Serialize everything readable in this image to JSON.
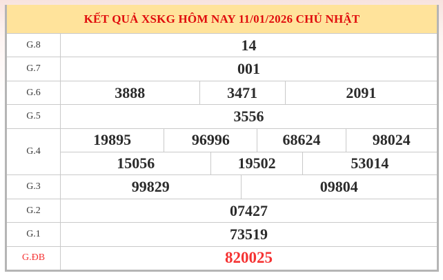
{
  "header": {
    "title": "KẾT QUẢ XSKG HÔM NAY 11/01/2026 CHỦ NHẬT"
  },
  "colors": {
    "header_bg": "#ffe39b",
    "header_text": "#e00d0d",
    "number_text": "#2b2b2b",
    "label_text": "#3a3a3a",
    "special_text": "#f53232",
    "border_outer": "#b5b5b5",
    "border_inner": "#c9c9c9",
    "page_top_tint": "#f7e3df"
  },
  "table": {
    "rows": [
      {
        "label": "G.8",
        "special": false,
        "subrows": [
          [
            "14"
          ]
        ]
      },
      {
        "label": "G.7",
        "special": false,
        "subrows": [
          [
            "001"
          ]
        ]
      },
      {
        "label": "G.6",
        "special": false,
        "subrows": [
          [
            "3888",
            "3471",
            "2091"
          ]
        ]
      },
      {
        "label": "G.5",
        "special": false,
        "subrows": [
          [
            "3556"
          ]
        ]
      },
      {
        "label": "G.4",
        "special": false,
        "subrows": [
          [
            "19895",
            "96996",
            "68624",
            "98024"
          ],
          [
            "15056",
            "19502",
            "53014"
          ]
        ]
      },
      {
        "label": "G.3",
        "special": false,
        "subrows": [
          [
            "99829",
            "09804"
          ]
        ]
      },
      {
        "label": "G.2",
        "special": false,
        "subrows": [
          [
            "07427"
          ]
        ]
      },
      {
        "label": "G.1",
        "special": false,
        "subrows": [
          [
            "73519"
          ]
        ]
      },
      {
        "label": "G.ĐB",
        "special": true,
        "subrows": [
          [
            "820025"
          ]
        ]
      }
    ]
  }
}
